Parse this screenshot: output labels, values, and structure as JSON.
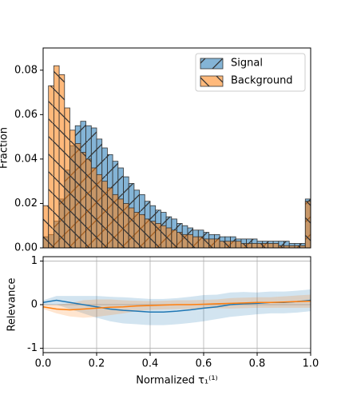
{
  "chart_data": [
    {
      "type": "histogram",
      "ylabel": "Fraction",
      "bins": [
        0,
        0.02,
        0.04,
        0.06,
        0.08,
        0.1,
        0.12,
        0.14,
        0.16,
        0.18,
        0.2,
        0.22,
        0.24,
        0.26,
        0.28,
        0.3,
        0.32,
        0.34,
        0.36,
        0.38,
        0.4,
        0.42,
        0.44,
        0.46,
        0.48,
        0.5,
        0.52,
        0.54,
        0.56,
        0.58,
        0.6,
        0.62,
        0.64,
        0.66,
        0.68,
        0.7,
        0.72,
        0.74,
        0.76,
        0.78,
        0.8,
        0.82,
        0.84,
        0.86,
        0.88,
        0.9,
        0.92,
        0.94,
        0.96,
        0.98,
        1
      ],
      "series": [
        {
          "name": "Signal",
          "color": "#1f77b4",
          "hatch": "/",
          "values": [
            0.005,
            0.006,
            0.012,
            0.022,
            0.035,
            0.046,
            0.055,
            0.057,
            0.055,
            0.054,
            0.049,
            0.045,
            0.042,
            0.039,
            0.036,
            0.032,
            0.029,
            0.026,
            0.024,
            0.021,
            0.019,
            0.017,
            0.016,
            0.014,
            0.013,
            0.011,
            0.01,
            0.009,
            0.008,
            0.008,
            0.007,
            0.006,
            0.006,
            0.005,
            0.005,
            0.005,
            0.004,
            0.004,
            0.004,
            0.004,
            0.003,
            0.003,
            0.003,
            0.003,
            0.003,
            0.003,
            0.002,
            0.002,
            0.002,
            0.022
          ]
        },
        {
          "name": "Background",
          "color": "#ff7f0e",
          "hatch": "\\",
          "values": [
            0.019,
            0.073,
            0.082,
            0.078,
            0.063,
            0.053,
            0.047,
            0.043,
            0.04,
            0.036,
            0.033,
            0.03,
            0.027,
            0.024,
            0.022,
            0.02,
            0.018,
            0.016,
            0.015,
            0.013,
            0.012,
            0.011,
            0.01,
            0.009,
            0.008,
            0.007,
            0.006,
            0.006,
            0.005,
            0.005,
            0.004,
            0.004,
            0.004,
            0.003,
            0.003,
            0.003,
            0.003,
            0.002,
            0.002,
            0.002,
            0.002,
            0.002,
            0.002,
            0.002,
            0.001,
            0.001,
            0.001,
            0.001,
            0.001,
            0.021
          ]
        }
      ],
      "xlim": [
        0,
        1
      ],
      "ylim": [
        0,
        0.09
      ],
      "yticks": [
        {
          "value": 0,
          "label": "0.00"
        },
        0.02,
        0.04,
        0.06,
        0.08
      ],
      "legend": "upper right",
      "grid": false
    },
    {
      "type": "line",
      "xlabel": "Normalized τ₁⁽¹⁾",
      "ylabel": "Relevance",
      "x": [
        0,
        0.05,
        0.1,
        0.15,
        0.2,
        0.25,
        0.3,
        0.35,
        0.4,
        0.45,
        0.5,
        0.55,
        0.6,
        0.65,
        0.7,
        0.75,
        0.8,
        0.85,
        0.9,
        0.95,
        1
      ],
      "series": [
        {
          "color": "#1f77b4",
          "values": [
            0.05,
            0.1,
            0.05,
            0,
            -0.05,
            -0.1,
            -0.13,
            -0.15,
            -0.17,
            -0.17,
            -0.15,
            -0.12,
            -0.08,
            -0.05,
            0,
            0.02,
            0.03,
            0.05,
            0.05,
            0.07,
            0.1
          ],
          "error": [
            0.05,
            0.1,
            0.15,
            0.2,
            0.25,
            0.28,
            0.3,
            0.3,
            0.3,
            0.3,
            0.3,
            0.3,
            0.3,
            0.28,
            0.28,
            0.27,
            0.25,
            0.25,
            0.25,
            0.25,
            0.25
          ]
        },
        {
          "color": "#ff7f0e",
          "values": [
            -0.05,
            -0.1,
            -0.12,
            -0.1,
            -0.08,
            -0.06,
            -0.05,
            -0.03,
            -0.02,
            -0.01,
            0,
            0,
            0.01,
            0.02,
            0.03,
            0.04,
            0.05,
            0.05,
            0.06,
            0.07,
            0.08
          ],
          "error": [
            0.05,
            0.1,
            0.15,
            0.2,
            0.2,
            0.18,
            0.15,
            0.12,
            0.1,
            0.1,
            0.1,
            0.1,
            0.1,
            0.1,
            0.12,
            0.12,
            0.12,
            0.12,
            0.13,
            0.14,
            0.15
          ]
        }
      ],
      "xlim": [
        0,
        1
      ],
      "xticks": [
        {
          "value": 0,
          "label": "0.0"
        },
        0.2,
        0.4,
        0.6,
        0.8,
        {
          "value": 1,
          "label": "1.0"
        }
      ],
      "ylim": [
        -1.1,
        1.1
      ],
      "yticks": [
        -1,
        0,
        1
      ],
      "grid": true
    }
  ]
}
